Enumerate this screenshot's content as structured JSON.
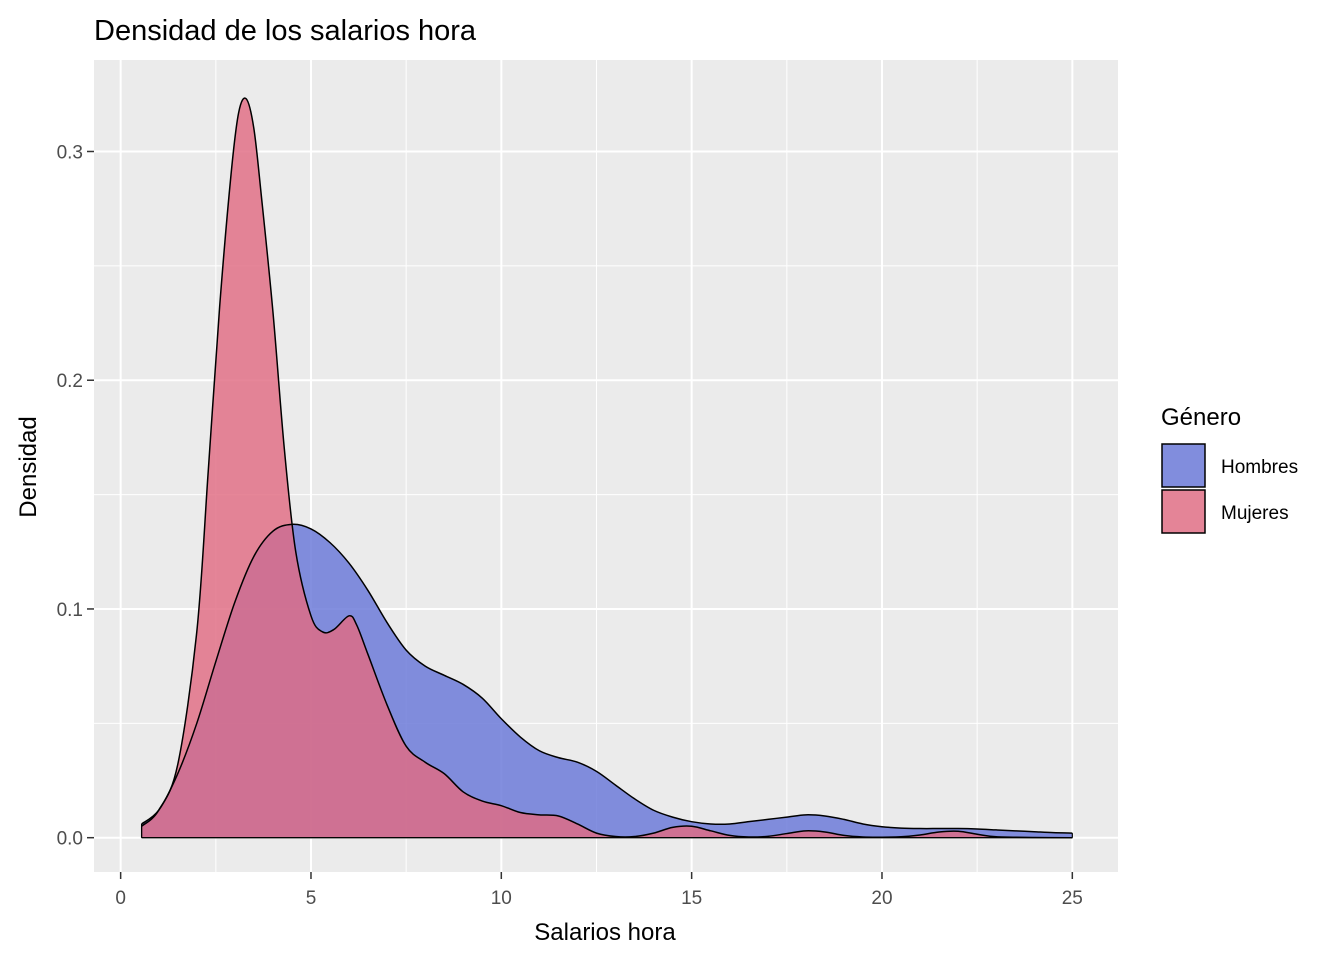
{
  "chart_data": {
    "type": "area",
    "title": "Densidad de los salarios hora",
    "xlabel": "Salarios hora",
    "ylabel": "Densidad",
    "xlim": [
      -0.7,
      26.2
    ],
    "ylim": [
      -0.015,
      0.34
    ],
    "x_ticks": [
      0,
      5,
      10,
      15,
      20,
      25
    ],
    "y_ticks": [
      0.0,
      0.1,
      0.2,
      0.3
    ],
    "x_tick_labels": [
      "0",
      "5",
      "10",
      "15",
      "20",
      "25"
    ],
    "y_tick_labels": [
      "0.0",
      "0.1",
      "0.2",
      "0.3"
    ],
    "grid": true,
    "legend": {
      "title": "Género",
      "position": "right"
    },
    "series": [
      {
        "name": "Hombres",
        "color": "#6876D8",
        "x": [
          0.55,
          1.0,
          1.5,
          2.0,
          2.5,
          3.0,
          3.5,
          4.0,
          4.5,
          5.0,
          5.5,
          6.0,
          6.5,
          7.0,
          7.5,
          8.0,
          8.5,
          9.0,
          9.5,
          10.0,
          10.5,
          11.0,
          11.5,
          12.0,
          12.5,
          13.0,
          13.5,
          14.0,
          14.5,
          15.0,
          15.5,
          16.0,
          16.5,
          17.0,
          17.5,
          18.0,
          18.5,
          19.0,
          19.5,
          20.0,
          20.5,
          21.0,
          21.5,
          22.0,
          22.5,
          23.0,
          23.5,
          24.0,
          24.5,
          25.0
        ],
        "y": [
          0.006,
          0.012,
          0.028,
          0.05,
          0.077,
          0.103,
          0.123,
          0.134,
          0.137,
          0.135,
          0.129,
          0.12,
          0.108,
          0.094,
          0.082,
          0.075,
          0.071,
          0.067,
          0.061,
          0.052,
          0.044,
          0.038,
          0.035,
          0.033,
          0.029,
          0.023,
          0.017,
          0.012,
          0.009,
          0.007,
          0.006,
          0.006,
          0.007,
          0.008,
          0.009,
          0.01,
          0.0095,
          0.008,
          0.006,
          0.0048,
          0.0042,
          0.004,
          0.004,
          0.004,
          0.0038,
          0.0034,
          0.003,
          0.0026,
          0.0022,
          0.002
        ]
      },
      {
        "name": "Mujeres",
        "color": "#E06B82",
        "x": [
          0.55,
          1.0,
          1.5,
          2.0,
          2.3,
          2.6,
          2.9,
          3.1,
          3.3,
          3.5,
          3.7,
          4.0,
          4.3,
          4.6,
          5.0,
          5.3,
          5.6,
          6.0,
          6.2,
          6.5,
          7.0,
          7.5,
          8.0,
          8.5,
          9.0,
          9.5,
          10.0,
          10.5,
          11.0,
          11.5,
          12.0,
          12.5,
          13.0,
          13.5,
          14.0,
          14.5,
          15.0,
          15.5,
          16.0,
          16.5,
          17.0,
          17.5,
          18.0,
          18.5,
          19.0,
          19.5,
          20.0,
          20.5,
          21.0,
          21.5,
          22.0,
          22.5,
          23.0,
          24.0,
          25.0
        ],
        "y": [
          0.005,
          0.012,
          0.032,
          0.09,
          0.16,
          0.232,
          0.29,
          0.317,
          0.323,
          0.31,
          0.28,
          0.23,
          0.17,
          0.125,
          0.097,
          0.09,
          0.091,
          0.097,
          0.093,
          0.08,
          0.058,
          0.04,
          0.033,
          0.028,
          0.02,
          0.016,
          0.014,
          0.011,
          0.01,
          0.0095,
          0.006,
          0.002,
          0.0005,
          0.0005,
          0.002,
          0.0045,
          0.005,
          0.003,
          0.001,
          0.0003,
          0.0006,
          0.0018,
          0.003,
          0.0025,
          0.001,
          0.0003,
          0.0002,
          0.0004,
          0.0012,
          0.0025,
          0.0028,
          0.0015,
          0.0004,
          0.0001,
          0.0
        ]
      }
    ]
  }
}
